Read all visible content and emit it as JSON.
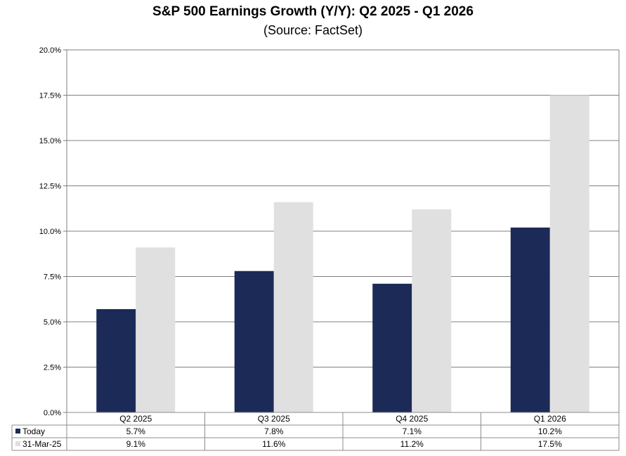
{
  "title": "S&P 500 Earnings Growth (Y/Y): Q2 2025 - Q1 2026",
  "subtitle": "(Source: FactSet)",
  "colors": {
    "today": "#1b2a57",
    "march": "#e0e0e0",
    "grid": "#7f7f7f",
    "border": "#8c8c8c"
  },
  "chart_data": {
    "type": "bar",
    "categories": [
      "Q2 2025",
      "Q3 2025",
      "Q4 2025",
      "Q1 2026"
    ],
    "series": [
      {
        "name": "Today",
        "values": [
          5.7,
          7.8,
          7.1,
          10.2
        ],
        "labels": [
          "5.7%",
          "7.8%",
          "7.1%",
          "10.2%"
        ]
      },
      {
        "name": "31-Mar-25",
        "values": [
          9.1,
          11.6,
          11.2,
          17.5
        ],
        "labels": [
          "9.1%",
          "11.6%",
          "11.2%",
          "17.5%"
        ]
      }
    ],
    "ylim": [
      0,
      20
    ],
    "yticks": [
      "0.0%",
      "2.5%",
      "5.0%",
      "7.5%",
      "10.0%",
      "12.5%",
      "15.0%",
      "17.5%",
      "20.0%"
    ],
    "grid": true,
    "legend": "data-table"
  }
}
